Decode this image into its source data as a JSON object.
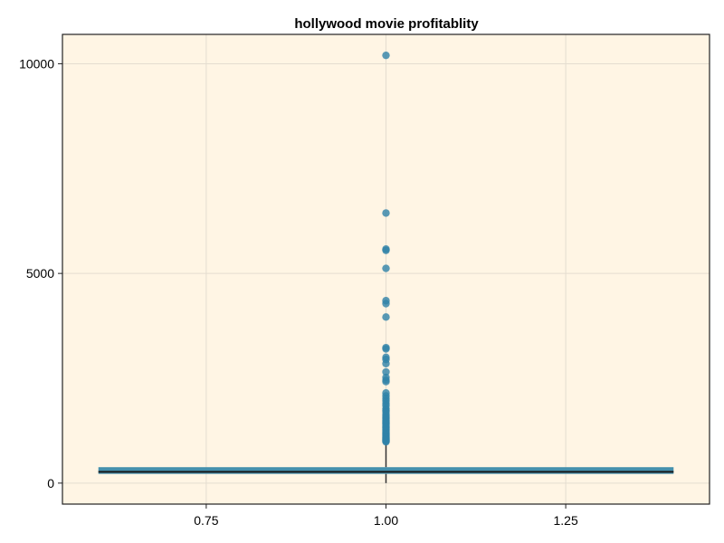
{
  "chart_data": {
    "type": "box",
    "title": "hollywood movie profitablity",
    "xlabel": "",
    "ylabel": "",
    "x_ticks": [
      "0.75",
      "1.00",
      "1.25"
    ],
    "y_ticks": [
      "0",
      "5000",
      "10000"
    ],
    "xlim": [
      0.55,
      1.45
    ],
    "ylim": [
      -500,
      10700
    ],
    "grid": true,
    "colors": {
      "plot_background": "#fff5e4",
      "box": "#3a8aaa",
      "outliers": "#2f82a8",
      "median": "#1a1a1a",
      "grid": "#e4ddd0",
      "frame": "#222222"
    },
    "series": [
      {
        "x": 1.0,
        "box_width": 0.8,
        "whisker_low": 0,
        "q1": 220,
        "median": 270,
        "q3": 380,
        "whisker_high": 960,
        "outliers": [
          10200,
          6440,
          5580,
          5550,
          5120,
          4350,
          4280,
          3960,
          3230,
          3200,
          3000,
          2950,
          2850,
          2650,
          2520,
          2460,
          2420,
          2150,
          2080,
          2020,
          1960,
          1900,
          1850,
          1780,
          1740,
          1700,
          1650,
          1610,
          1570,
          1530,
          1500,
          1470,
          1440,
          1410,
          1380,
          1350,
          1320,
          1290,
          1260,
          1230,
          1200,
          1175,
          1150,
          1125,
          1100,
          1080,
          1060,
          1040,
          1020,
          1000,
          985
        ]
      }
    ]
  }
}
